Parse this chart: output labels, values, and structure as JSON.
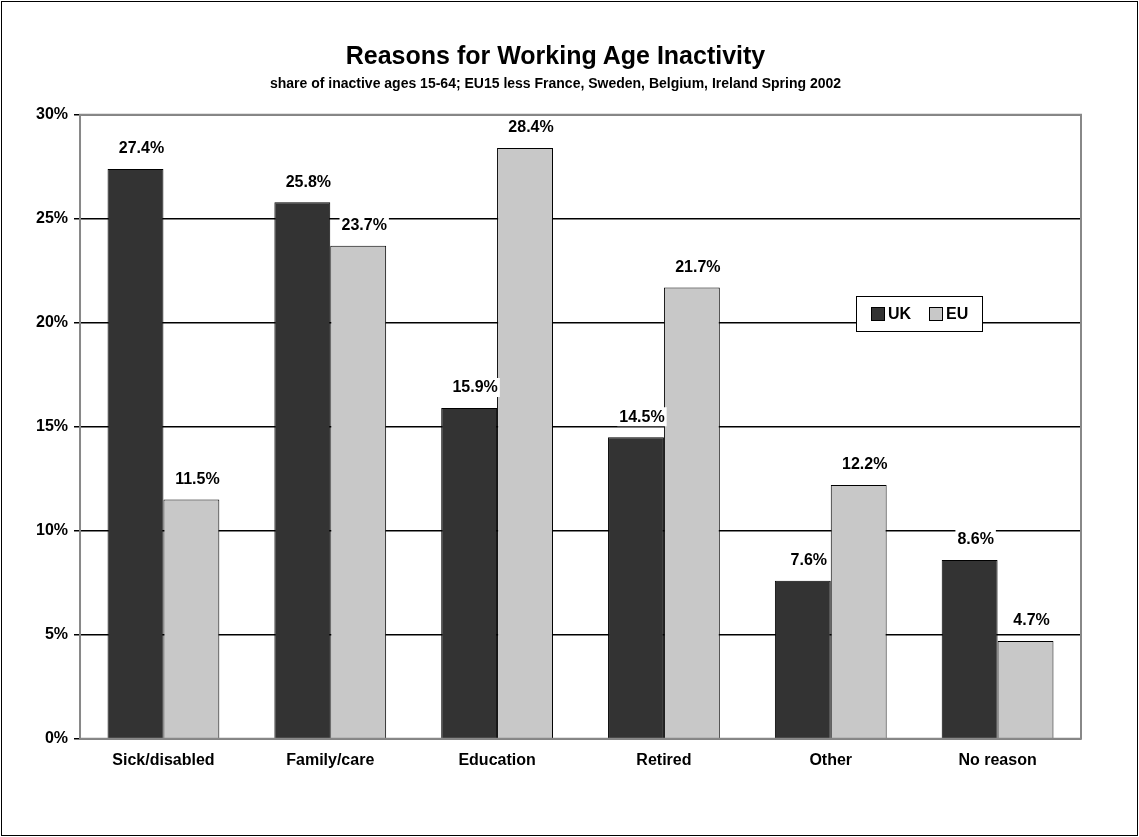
{
  "chart_data": {
    "type": "bar",
    "title": "Reasons for Working Age Inactivity",
    "subtitle": "share of inactive ages 15-64; EU15 less France, Sweden, Belgium, Ireland Spring 2002",
    "categories": [
      "Sick/disabled",
      "Family/care",
      "Education",
      "Retired",
      "Other",
      "No reason"
    ],
    "series": [
      {
        "name": "UK",
        "color": "#333333",
        "values": [
          27.4,
          25.8,
          15.9,
          14.5,
          7.6,
          8.6
        ],
        "value_labels": [
          "27.4%",
          "25.8%",
          "15.9%",
          "14.5%",
          "7.6%",
          "8.6%"
        ]
      },
      {
        "name": "EU",
        "color": "#c8c8c8",
        "values": [
          11.5,
          23.7,
          28.4,
          21.7,
          12.2,
          4.7
        ],
        "value_labels": [
          "11.5%",
          "23.7%",
          "28.4%",
          "21.7%",
          "12.2%",
          "4.7%"
        ]
      }
    ],
    "ylim": [
      0,
      30
    ],
    "yticks": [
      {
        "value": 0,
        "label": "0%"
      },
      {
        "value": 5,
        "label": "5%"
      },
      {
        "value": 10,
        "label": "10%"
      },
      {
        "value": 15,
        "label": "15%"
      },
      {
        "value": 20,
        "label": "20%"
      },
      {
        "value": 25,
        "label": "25%"
      },
      {
        "value": 30,
        "label": "30%"
      }
    ],
    "grid": "y",
    "legend": "right"
  }
}
